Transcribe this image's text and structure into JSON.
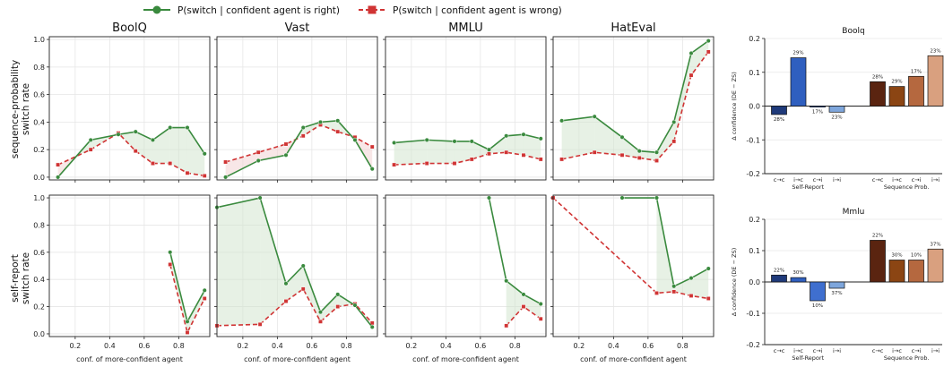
{
  "legend": {
    "right_label": "P(switch | confident agent is right)",
    "wrong_label": "P(switch | confident agent is wrong)",
    "right_color": "#3a8a3e",
    "wrong_color": "#d03434"
  },
  "row_labels": [
    [
      "sequence-probability",
      "switch rate"
    ],
    [
      "self-report",
      "switch rate"
    ]
  ],
  "xlabel": "conf. of more-confident agent",
  "bar_ylabel": "Δ confidence (DE − ZS)",
  "bar_group_labels": [
    "Self-Report",
    "Sequence Prob."
  ],
  "bar_categories": [
    "c→c",
    "i→c",
    "c→i",
    "i→i",
    "c→c",
    "i→c",
    "c→i",
    "i→i"
  ],
  "bar_colors": [
    "#1f3a7a",
    "#2f5fbf",
    "#3f6fcf",
    "#7ea6dc",
    "#5a2410",
    "#8b4513",
    "#b5683f",
    "#d9a07f"
  ],
  "chart_data": [
    {
      "type": "line",
      "title": "BoolQ",
      "row": 0,
      "col": 0,
      "right": {
        "x": [
          0.1,
          0.29,
          0.45,
          0.55,
          0.65,
          0.75,
          0.85,
          0.95
        ],
        "y": [
          0.0,
          0.27,
          0.31,
          0.33,
          0.27,
          0.36,
          0.36,
          0.17
        ]
      },
      "wrong": {
        "x": [
          0.1,
          0.29,
          0.45,
          0.55,
          0.65,
          0.75,
          0.85,
          0.95
        ],
        "y": [
          0.09,
          0.2,
          0.32,
          0.19,
          0.1,
          0.1,
          0.03,
          0.01
        ]
      }
    },
    {
      "type": "line",
      "title": "Vast",
      "row": 0,
      "col": 1,
      "right": {
        "x": [
          0.1,
          0.29,
          0.45,
          0.55,
          0.65,
          0.75,
          0.85,
          0.95
        ],
        "y": [
          0.0,
          0.12,
          0.16,
          0.36,
          0.4,
          0.41,
          0.27,
          0.06
        ]
      },
      "wrong": {
        "x": [
          0.1,
          0.29,
          0.45,
          0.55,
          0.65,
          0.75,
          0.85,
          0.95
        ],
        "y": [
          0.11,
          0.18,
          0.24,
          0.3,
          0.38,
          0.33,
          0.29,
          0.22
        ]
      }
    },
    {
      "type": "line",
      "title": "MMLU",
      "row": 0,
      "col": 2,
      "right": {
        "x": [
          0.1,
          0.29,
          0.45,
          0.55,
          0.65,
          0.75,
          0.85,
          0.95
        ],
        "y": [
          0.25,
          0.27,
          0.26,
          0.26,
          0.2,
          0.3,
          0.31,
          0.28
        ]
      },
      "wrong": {
        "x": [
          0.1,
          0.29,
          0.45,
          0.55,
          0.65,
          0.75,
          0.85,
          0.95
        ],
        "y": [
          0.09,
          0.1,
          0.1,
          0.13,
          0.17,
          0.18,
          0.16,
          0.13
        ]
      }
    },
    {
      "type": "line",
      "title": "HatEval",
      "row": 0,
      "col": 3,
      "right": {
        "x": [
          0.1,
          0.29,
          0.45,
          0.55,
          0.65,
          0.75,
          0.85,
          0.95
        ],
        "y": [
          0.41,
          0.44,
          0.29,
          0.19,
          0.18,
          0.4,
          0.9,
          0.99
        ]
      },
      "wrong": {
        "x": [
          0.1,
          0.29,
          0.45,
          0.55,
          0.65,
          0.75,
          0.85,
          0.95
        ],
        "y": [
          0.13,
          0.18,
          0.16,
          0.14,
          0.12,
          0.26,
          0.74,
          0.91
        ]
      }
    },
    {
      "type": "line",
      "title": "",
      "row": 1,
      "col": 0,
      "right": {
        "x": [
          0.75,
          0.85,
          0.95
        ],
        "y": [
          0.6,
          0.09,
          0.32
        ]
      },
      "wrong": {
        "x": [
          0.75,
          0.85,
          0.95
        ],
        "y": [
          0.51,
          0.01,
          0.26
        ]
      }
    },
    {
      "type": "line",
      "title": "",
      "row": 1,
      "col": 1,
      "right": {
        "x": [
          0.05,
          0.3,
          0.45,
          0.55,
          0.65,
          0.75,
          0.85,
          0.95
        ],
        "y": [
          0.93,
          1.0,
          0.37,
          0.5,
          0.16,
          0.29,
          0.21,
          0.05
        ]
      },
      "wrong": {
        "x": [
          0.05,
          0.3,
          0.45,
          0.55,
          0.65,
          0.75,
          0.85,
          0.95
        ],
        "y": [
          0.06,
          0.07,
          0.24,
          0.33,
          0.09,
          0.2,
          0.22,
          0.08
        ]
      }
    },
    {
      "type": "line",
      "title": "",
      "row": 1,
      "col": 2,
      "right": {
        "x": [
          0.65,
          0.75,
          0.85,
          0.95
        ],
        "y": [
          1.0,
          0.39,
          0.29,
          0.22
        ]
      },
      "wrong": {
        "x": [
          0.75,
          0.85,
          0.95
        ],
        "y": [
          0.06,
          0.2,
          0.11
        ]
      }
    },
    {
      "type": "line",
      "title": "",
      "row": 1,
      "col": 3,
      "right": {
        "x": [
          0.45,
          0.65,
          0.75,
          0.85,
          0.95
        ],
        "y": [
          1.0,
          1.0,
          0.35,
          0.41,
          0.48
        ]
      },
      "wrong": {
        "x": [
          0.05,
          0.65,
          0.75,
          0.85,
          0.95
        ],
        "y": [
          1.0,
          0.3,
          0.31,
          0.28,
          0.26
        ]
      }
    },
    {
      "type": "bar",
      "title": "Boolq",
      "values": [
        -0.025,
        0.143,
        -0.003,
        -0.018,
        0.072,
        0.058,
        0.088,
        0.149
      ],
      "pct_labels": [
        "28%",
        "29%",
        "17%",
        "23%",
        "28%",
        "29%",
        "17%",
        "23%"
      ],
      "ylim": [
        -0.2,
        0.2
      ]
    },
    {
      "type": "bar",
      "title": "Mmlu",
      "values": [
        0.022,
        0.014,
        -0.06,
        -0.02,
        0.133,
        0.07,
        0.07,
        0.105
      ],
      "pct_labels": [
        "22%",
        "30%",
        "10%",
        "37%",
        "22%",
        "30%",
        "10%",
        "37%"
      ],
      "ylim": [
        -0.2,
        0.2
      ]
    }
  ]
}
